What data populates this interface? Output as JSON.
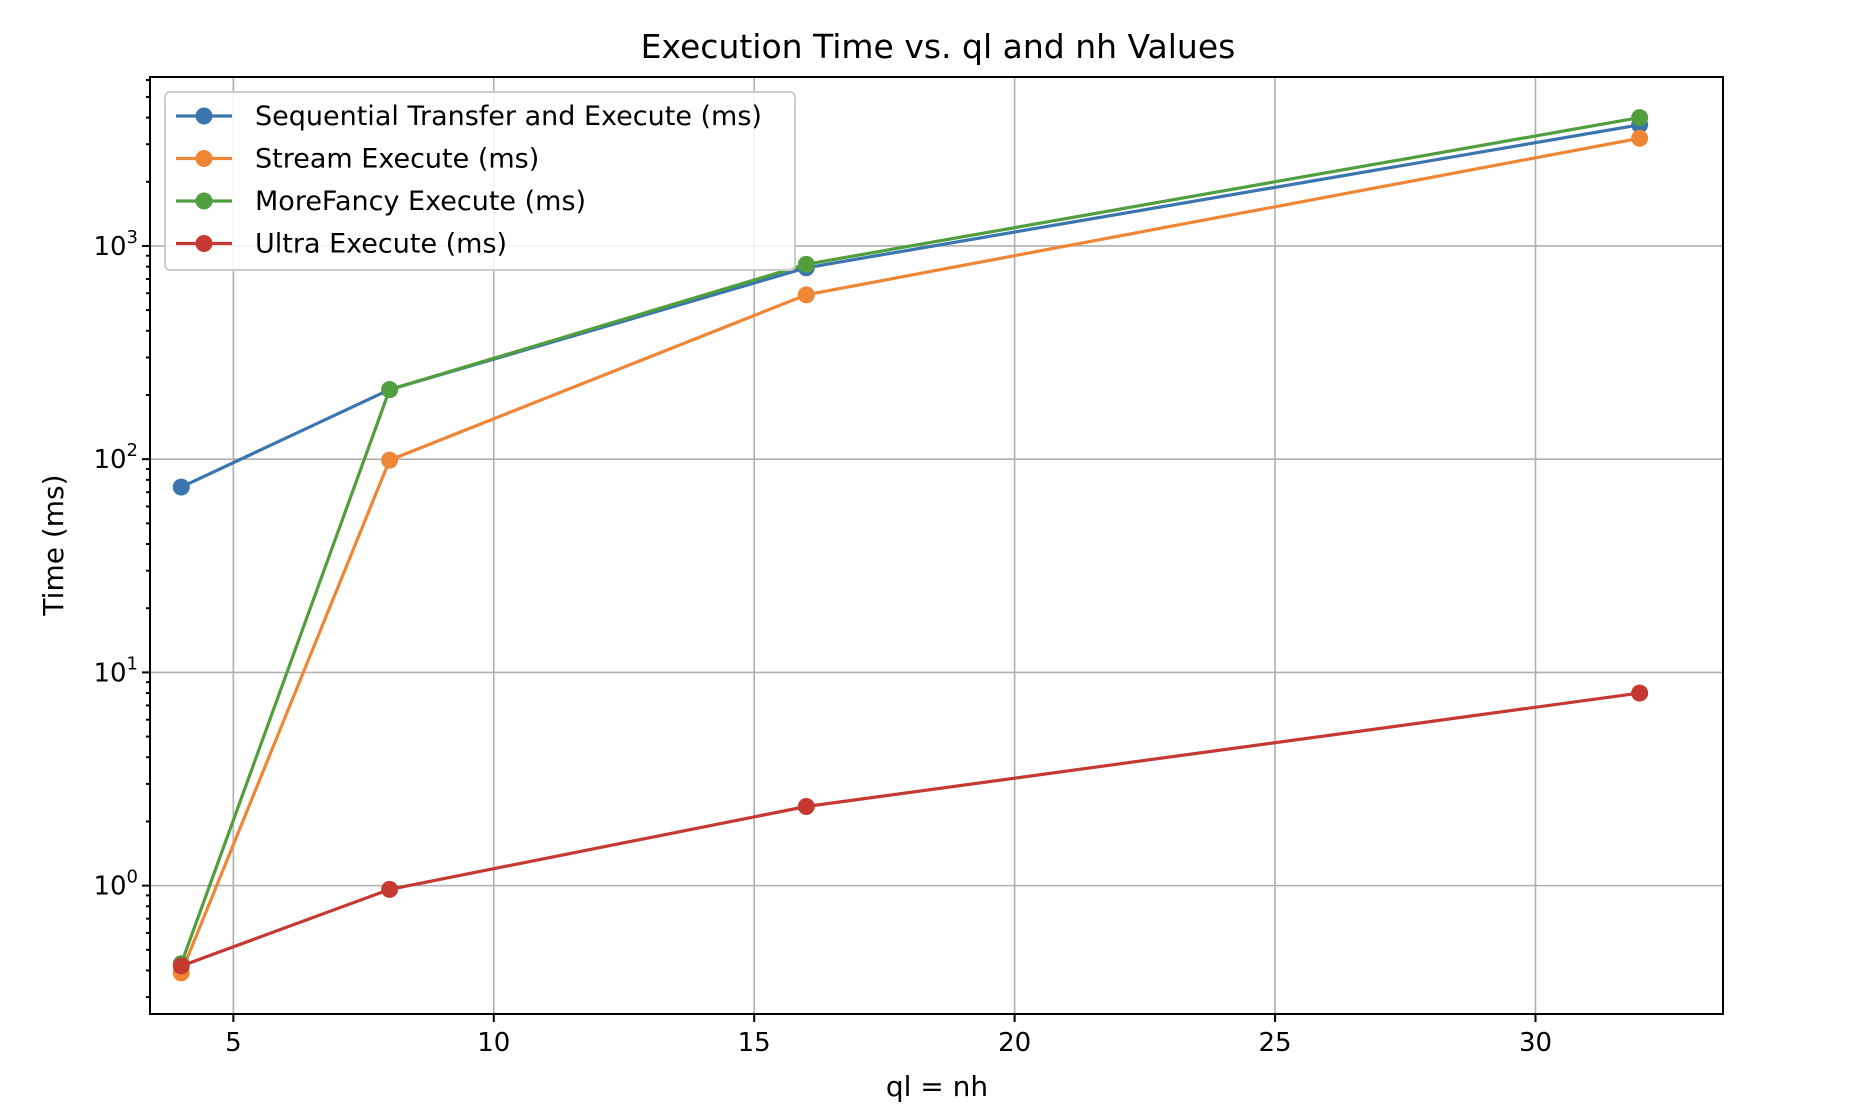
{
  "chart_data": {
    "type": "line",
    "title": "Execution Time vs. ql and nh Values",
    "xlabel": "ql = nh",
    "ylabel": "Time (ms)",
    "y_scale": "log",
    "grid": true,
    "legend_position": "top-left",
    "x": [
      4,
      8,
      16,
      32
    ],
    "xlim": [
      3.4,
      33.6
    ],
    "ylim": [
      0.25,
      6200
    ],
    "x_ticks": [
      5,
      10,
      15,
      20,
      25,
      30
    ],
    "y_ticks": [
      {
        "value": 1,
        "base": "10",
        "exp": "0"
      },
      {
        "value": 10,
        "base": "10",
        "exp": "1"
      },
      {
        "value": 100,
        "base": "10",
        "exp": "2"
      },
      {
        "value": 1000,
        "base": "10",
        "exp": "3"
      }
    ],
    "series": [
      {
        "name": "Sequential Transfer and Execute (ms)",
        "color": "#3a75af",
        "values": [
          74,
          212,
          790,
          3700
        ]
      },
      {
        "name": "Stream Execute (ms)",
        "color": "#ef8636",
        "values": [
          0.39,
          99,
          590,
          3200
        ]
      },
      {
        "name": "MoreFancy Execute (ms)",
        "color": "#519e3e",
        "values": [
          0.43,
          212,
          820,
          4000
        ]
      },
      {
        "name": "Ultra Execute (ms)",
        "color": "#c53932",
        "values": [
          0.42,
          0.96,
          2.35,
          8.0
        ]
      }
    ]
  }
}
